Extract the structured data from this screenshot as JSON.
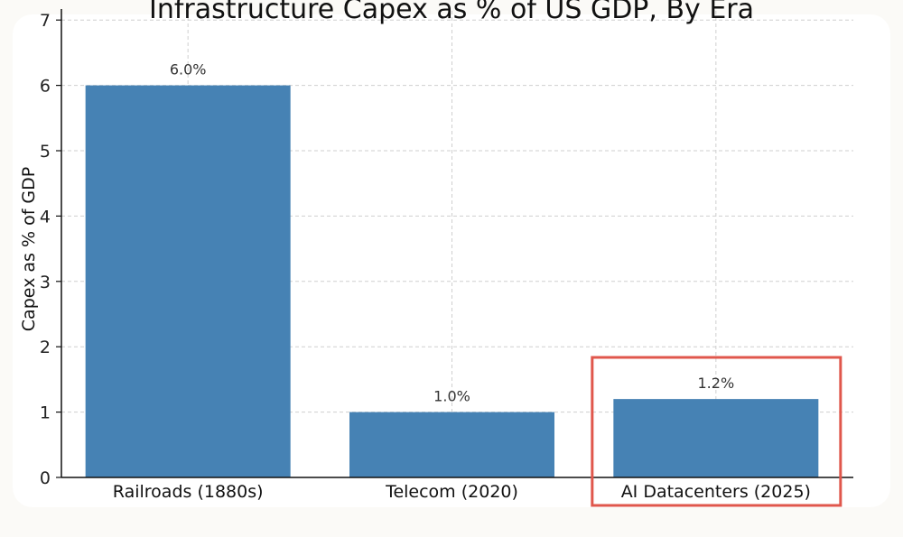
{
  "chart_data": {
    "type": "bar",
    "title": "Infrastructure Capex as % of US GDP, By Era",
    "xlabel": "",
    "ylabel": "Capex as % of GDP",
    "categories": [
      "Railroads (1880s)",
      "Telecom (2020)",
      "AI Datacenters (2025)"
    ],
    "values": [
      6.0,
      1.0,
      1.2
    ],
    "data_labels": [
      "6.0%",
      "1.0%",
      "1.2%"
    ],
    "ylim": [
      0,
      7
    ],
    "yticks": [
      0,
      1,
      2,
      3,
      4,
      5,
      6,
      7
    ],
    "grid": true,
    "bar_color": "#4682b4",
    "highlight": {
      "category": "AI Datacenters (2025)",
      "color": "#e0574c"
    }
  }
}
